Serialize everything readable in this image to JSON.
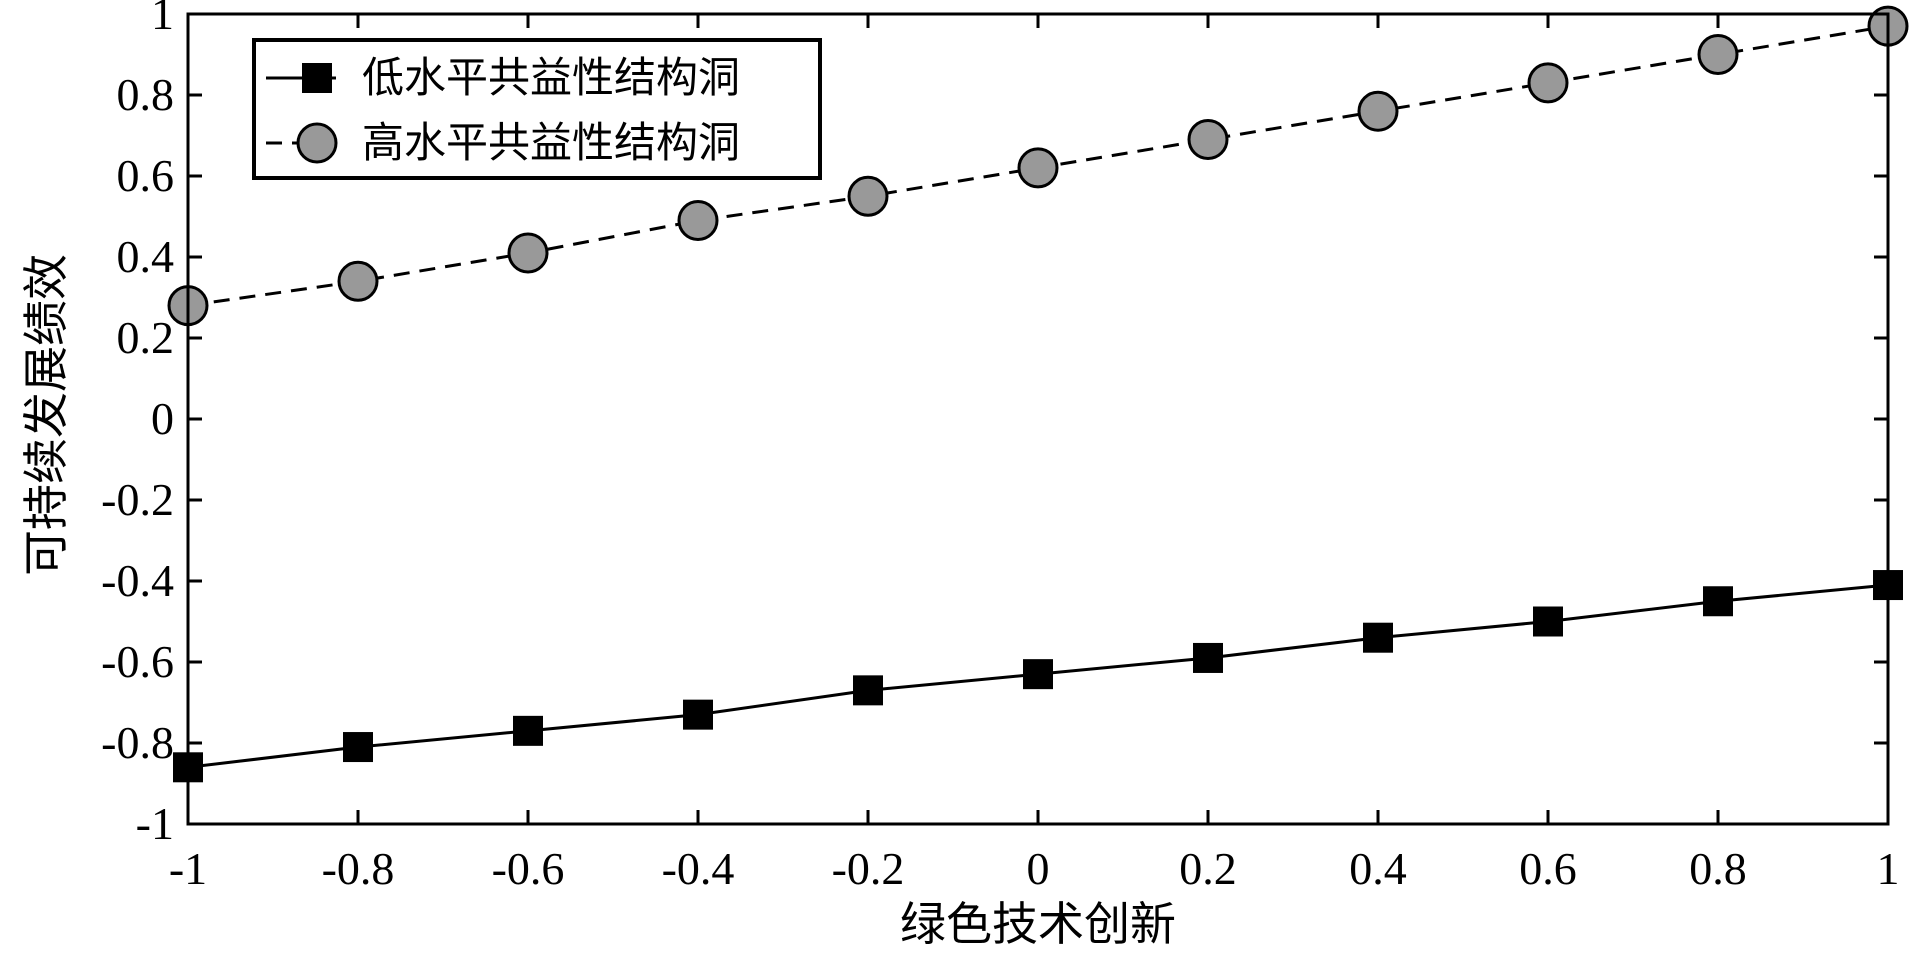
{
  "chart_data": {
    "type": "line",
    "xlabel": "绿色技术创新",
    "ylabel": "可持续发展绩效",
    "xlim": [
      -1,
      1
    ],
    "ylim": [
      -1,
      1
    ],
    "x": [
      -1,
      -0.8,
      -0.6,
      -0.4,
      -0.2,
      0,
      0.2,
      0.4,
      0.6,
      0.8,
      1
    ],
    "x_ticks": [
      -1,
      -0.8,
      -0.6,
      -0.4,
      -0.2,
      0,
      0.2,
      0.4,
      0.6,
      0.8,
      1
    ],
    "y_ticks": [
      -1,
      -0.8,
      -0.6,
      -0.4,
      -0.2,
      0,
      0.2,
      0.4,
      0.6,
      0.8,
      1
    ],
    "x_tick_labels": [
      "-1",
      "-0.8",
      "-0.6",
      "-0.4",
      "-0.2",
      "0",
      "0.2",
      "0.4",
      "0.6",
      "0.8",
      "1"
    ],
    "y_tick_labels": [
      "-1",
      "-0.8",
      "-0.6",
      "-0.4",
      "-0.2",
      "0",
      "0.2",
      "0.4",
      "0.6",
      "0.8",
      "1"
    ],
    "grid": false,
    "legend_position": "top-left",
    "series": [
      {
        "name": "低水平共益性结构洞",
        "values": [
          -0.86,
          -0.81,
          -0.77,
          -0.73,
          -0.67,
          -0.63,
          -0.59,
          -0.54,
          -0.5,
          -0.45,
          -0.41
        ],
        "line_style": "solid",
        "marker": "square",
        "color": "#000000",
        "marker_fill": "#000000"
      },
      {
        "name": "高水平共益性结构洞",
        "values": [
          0.28,
          0.34,
          0.41,
          0.49,
          0.55,
          0.62,
          0.69,
          0.76,
          0.83,
          0.9,
          0.97
        ],
        "line_style": "dashed",
        "marker": "circle",
        "color": "#000000",
        "marker_fill": "#999999"
      }
    ]
  }
}
